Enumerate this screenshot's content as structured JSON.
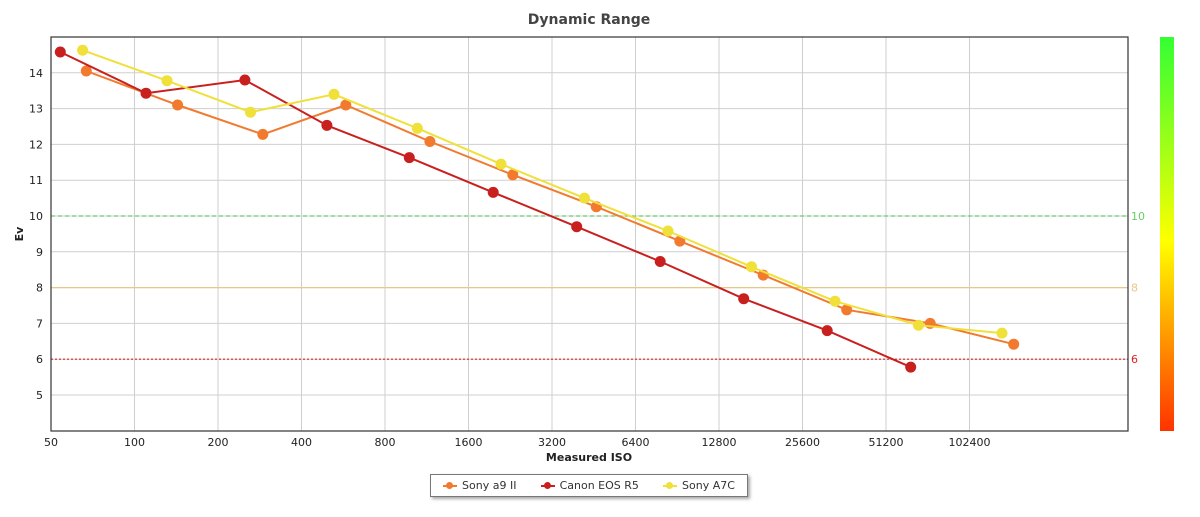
{
  "chart_data": {
    "type": "line",
    "title": "Dynamic Range",
    "xlabel": "Measured ISO",
    "ylabel": "Ev",
    "x_scale": "log2",
    "x_ticks": [
      "50",
      "100",
      "200",
      "400",
      "800",
      "1600",
      "3200",
      "6400",
      "12800",
      "25600",
      "51200",
      "102400"
    ],
    "y_ticks": [
      "5",
      "6",
      "7",
      "8",
      "9",
      "10",
      "11",
      "12",
      "13",
      "14"
    ],
    "ylim": [
      4,
      15
    ],
    "grid": true,
    "legend_position": "bottom",
    "reference_lines": [
      {
        "value": 10,
        "label": "10",
        "color": "#66cc66",
        "style": "dashed"
      },
      {
        "value": 8,
        "label": "8",
        "color": "#e8c88a",
        "style": "solid"
      },
      {
        "value": 6,
        "label": "6",
        "color": "#dd2222",
        "style": "dotted"
      }
    ],
    "color_scale": [
      "#33ff33",
      "#ffff00",
      "#ff3300"
    ],
    "series": [
      {
        "name": "Sony a9 II",
        "color": "#f27a2f",
        "points": [
          [
            67,
            14.05
          ],
          [
            143,
            13.1
          ],
          [
            290,
            12.28
          ],
          [
            578,
            13.1
          ],
          [
            1161,
            12.08
          ],
          [
            2311,
            11.15
          ],
          [
            4621,
            10.26
          ],
          [
            9241,
            9.3
          ],
          [
            18481,
            8.35
          ],
          [
            36963,
            7.38
          ],
          [
            73926,
            7.0
          ],
          [
            147851,
            6.42
          ]
        ]
      },
      {
        "name": "Canon EOS R5",
        "color": "#c8201e",
        "points": [
          [
            54,
            14.58
          ],
          [
            110,
            13.43
          ],
          [
            250,
            13.8
          ],
          [
            494,
            12.53
          ],
          [
            979,
            11.63
          ],
          [
            1964,
            10.66
          ],
          [
            3927,
            9.7
          ],
          [
            7855,
            8.73
          ],
          [
            15709,
            7.69
          ],
          [
            31418,
            6.8
          ],
          [
            62836,
            5.78
          ]
        ]
      },
      {
        "name": "Sony A7C",
        "color": "#f0e03a",
        "points": [
          [
            65,
            14.63
          ],
          [
            131,
            13.78
          ],
          [
            262,
            12.9
          ],
          [
            524,
            13.4
          ],
          [
            1047,
            12.45
          ],
          [
            2096,
            11.45
          ],
          [
            4190,
            10.5
          ],
          [
            8379,
            9.58
          ],
          [
            16759,
            8.58
          ],
          [
            33517,
            7.62
          ],
          [
            67034,
            6.95
          ],
          [
            134068,
            6.73
          ]
        ]
      }
    ]
  }
}
